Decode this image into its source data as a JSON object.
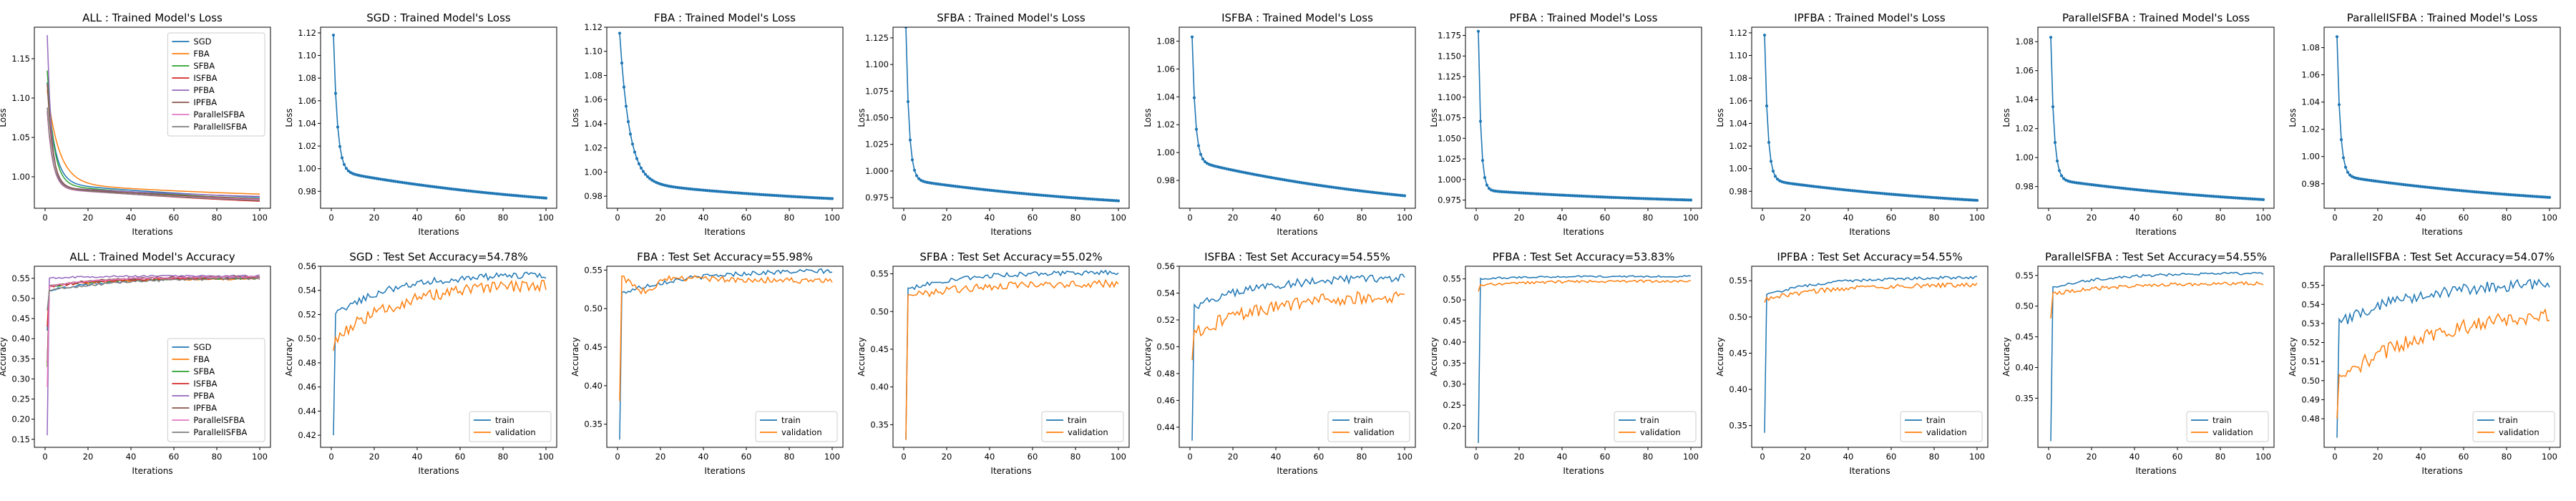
{
  "colors": {
    "sgd": "#1f77b4",
    "fba": "#ff7f0e",
    "sfba": "#2ca02c",
    "isfba": "#d62728",
    "pfba": "#9467bd",
    "ipfba": "#8c564b",
    "parallelsfba": "#e377c2",
    "parallelisfba": "#7f7f7f",
    "train": "#1f77b4",
    "validation": "#ff7f0e"
  },
  "chart_data": [
    {
      "type": "line",
      "title": "ALL : Trained Model's Loss",
      "xlabel": "Iterations",
      "ylabel": "Loss",
      "xlim": [
        -5,
        105
      ],
      "ylim": [
        0.96,
        1.19
      ],
      "xticks": [
        0,
        20,
        40,
        60,
        80,
        100
      ],
      "yticks": [
        1.0,
        1.05,
        1.1,
        1.15
      ],
      "ytick_labels": [
        "1.00",
        "1.05",
        "1.10",
        "1.15"
      ],
      "legend": "top-right",
      "series": [
        {
          "name": "SGD",
          "color_key": "sgd",
          "y0": 1.12,
          "yend": 0.974,
          "tau": 3.5,
          "shape": 0.018
        },
        {
          "name": "FBA",
          "color_key": "fba",
          "y0": 1.11,
          "yend": 0.978,
          "tau": 5.5,
          "shape": 0.014
        },
        {
          "name": "SFBA",
          "color_key": "sfba",
          "y0": 1.135,
          "yend": 0.972,
          "tau": 3,
          "shape": 0.018
        },
        {
          "name": "ISFBA",
          "color_key": "isfba",
          "y0": 1.083,
          "yend": 0.969,
          "tau": 2.5,
          "shape": 0.018
        },
        {
          "name": "PFBA",
          "color_key": "pfba",
          "y0": 1.18,
          "yend": 0.975,
          "tau": 2,
          "shape": 0.012
        },
        {
          "name": "IPFBA",
          "color_key": "ipfba",
          "y0": 1.118,
          "yend": 0.972,
          "tau": 2.5,
          "shape": 0.015
        },
        {
          "name": "ParallelSFBA",
          "color_key": "parallelsfba",
          "y0": 1.083,
          "yend": 0.971,
          "tau": 2.5,
          "shape": 0.014
        },
        {
          "name": "ParallelISFBA",
          "color_key": "parallelisfba",
          "y0": 1.088,
          "yend": 0.97,
          "tau": 2.5,
          "shape": 0.016
        }
      ]
    },
    {
      "type": "line",
      "title": "SGD : Trained Model's Loss",
      "xlabel": "Iterations",
      "ylabel": "Loss",
      "xlim": [
        -5,
        105
      ],
      "ylim": [
        0.965,
        1.125
      ],
      "xticks": [
        0,
        20,
        40,
        60,
        80,
        100
      ],
      "yticks": [
        0.98,
        1.0,
        1.02,
        1.04,
        1.06,
        1.08,
        1.1,
        1.12
      ],
      "ytick_labels": [
        "0.98",
        "1.00",
        "1.02",
        "1.04",
        "1.06",
        "1.08",
        "1.10",
        "1.12"
      ],
      "markers": true,
      "series": [
        {
          "color_key": "sgd",
          "y0": 1.118,
          "yend": 0.974,
          "tau": 1.8,
          "shape": 0.024
        }
      ]
    },
    {
      "type": "line",
      "title": "FBA : Trained Model's Loss",
      "xlabel": "Iterations",
      "ylabel": "Loss",
      "xlim": [
        -5,
        105
      ],
      "ylim": [
        0.97,
        1.12
      ],
      "xticks": [
        0,
        20,
        40,
        60,
        80,
        100
      ],
      "yticks": [
        0.98,
        1.0,
        1.02,
        1.04,
        1.06,
        1.08,
        1.1,
        1.12
      ],
      "ytick_labels": [
        "0.98",
        "1.00",
        "1.02",
        "1.04",
        "1.06",
        "1.08",
        "1.10",
        "1.12"
      ],
      "markers": true,
      "series": [
        {
          "color_key": "sgd",
          "y0": 1.115,
          "yend": 0.978,
          "tau": 4.5,
          "shape": 0.014
        }
      ]
    },
    {
      "type": "line",
      "title": "SFBA : Trained Model's Loss",
      "xlabel": "Iterations",
      "ylabel": "Loss",
      "xlim": [
        -5,
        105
      ],
      "ylim": [
        0.965,
        1.135
      ],
      "xticks": [
        0,
        20,
        40,
        60,
        80,
        100
      ],
      "yticks": [
        0.975,
        1.0,
        1.025,
        1.05,
        1.075,
        1.1,
        1.125
      ],
      "ytick_labels": [
        "0.975",
        "1.000",
        "1.025",
        "1.050",
        "1.075",
        "1.100",
        "1.125"
      ],
      "markers": true,
      "series": [
        {
          "color_key": "sgd",
          "y0": 1.135,
          "yend": 0.972,
          "tau": 1.5,
          "shape": 0.02
        }
      ]
    },
    {
      "type": "line",
      "title": "ISFBA : Trained Model's Loss",
      "xlabel": "Iterations",
      "ylabel": "Loss",
      "xlim": [
        -5,
        105
      ],
      "ylim": [
        0.96,
        1.09
      ],
      "xticks": [
        0,
        20,
        40,
        60,
        80,
        100
      ],
      "yticks": [
        0.98,
        1.0,
        1.02,
        1.04,
        1.06,
        1.08
      ],
      "ytick_labels": [
        "0.98",
        "1.00",
        "1.02",
        "1.04",
        "1.06",
        "1.08"
      ],
      "markers": true,
      "series": [
        {
          "color_key": "sgd",
          "y0": 1.083,
          "yend": 0.969,
          "tau": 1.5,
          "shape": 0.025
        }
      ]
    },
    {
      "type": "line",
      "title": "PFBA : Trained Model's Loss",
      "xlabel": "Iterations",
      "ylabel": "Loss",
      "xlim": [
        -5,
        105
      ],
      "ylim": [
        0.965,
        1.185
      ],
      "xticks": [
        0,
        20,
        40,
        60,
        80,
        100
      ],
      "yticks": [
        0.975,
        1.0,
        1.025,
        1.05,
        1.075,
        1.1,
        1.125,
        1.15,
        1.175
      ],
      "ytick_labels": [
        "0.975",
        "1.000",
        "1.025",
        "1.050",
        "1.075",
        "1.100",
        "1.125",
        "1.150",
        "1.175"
      ],
      "markers": true,
      "series": [
        {
          "color_key": "sgd",
          "y0": 1.18,
          "yend": 0.975,
          "tau": 1.2,
          "shape": 0.012
        }
      ]
    },
    {
      "type": "line",
      "title": "IPFBA : Trained Model's Loss",
      "xlabel": "Iterations",
      "ylabel": "Loss",
      "xlim": [
        -5,
        105
      ],
      "ylim": [
        0.965,
        1.125
      ],
      "xticks": [
        0,
        20,
        40,
        60,
        80,
        100
      ],
      "yticks": [
        0.98,
        1.0,
        1.02,
        1.04,
        1.06,
        1.08,
        1.1,
        1.12
      ],
      "ytick_labels": [
        "0.98",
        "1.00",
        "1.02",
        "1.04",
        "1.06",
        "1.08",
        "1.10",
        "1.12"
      ],
      "markers": true,
      "series": [
        {
          "color_key": "sgd",
          "y0": 1.118,
          "yend": 0.972,
          "tau": 1.5,
          "shape": 0.018
        }
      ]
    },
    {
      "type": "line",
      "title": "ParallelSFBA : Trained Model's Loss",
      "xlabel": "Iterations",
      "ylabel": "Loss",
      "xlim": [
        -5,
        105
      ],
      "ylim": [
        0.965,
        1.09
      ],
      "xticks": [
        0,
        20,
        40,
        60,
        80,
        100
      ],
      "yticks": [
        0.98,
        1.0,
        1.02,
        1.04,
        1.06,
        1.08
      ],
      "ytick_labels": [
        "0.98",
        "1.00",
        "1.02",
        "1.04",
        "1.06",
        "1.08"
      ],
      "markers": true,
      "series": [
        {
          "color_key": "sgd",
          "y0": 1.083,
          "yend": 0.971,
          "tau": 1.5,
          "shape": 0.014
        }
      ]
    },
    {
      "type": "line",
      "title": "ParallelISFBA : Trained Model's Loss",
      "xlabel": "Iterations",
      "ylabel": "Loss",
      "xlim": [
        -5,
        105
      ],
      "ylim": [
        0.962,
        1.095
      ],
      "xticks": [
        0,
        20,
        40,
        60,
        80,
        100
      ],
      "yticks": [
        0.98,
        1.0,
        1.02,
        1.04,
        1.06,
        1.08
      ],
      "ytick_labels": [
        "0.98",
        "1.00",
        "1.02",
        "1.04",
        "1.06",
        "1.08"
      ],
      "markers": true,
      "series": [
        {
          "color_key": "sgd",
          "y0": 1.088,
          "yend": 0.97,
          "tau": 1.5,
          "shape": 0.016
        }
      ]
    },
    {
      "type": "line",
      "title": "ALL : Trained Model's Accuracy",
      "xlabel": "Iterations",
      "ylabel": "Accuracy",
      "xlim": [
        -5,
        105
      ],
      "ylim": [
        0.13,
        0.58
      ],
      "xticks": [
        0,
        20,
        40,
        60,
        80,
        100
      ],
      "yticks": [
        0.15,
        0.2,
        0.25,
        0.3,
        0.35,
        0.4,
        0.45,
        0.5,
        0.55
      ],
      "ytick_labels": [
        "0.15",
        "0.20",
        "0.25",
        "0.30",
        "0.35",
        "0.40",
        "0.45",
        "0.50",
        "0.55"
      ],
      "legend": "lower-right",
      "series": [
        {
          "name": "SGD",
          "color_key": "sgd",
          "y0": 0.42,
          "y1": 0.52,
          "yend": 0.553,
          "tau": 30,
          "noise": 0.003
        },
        {
          "name": "FBA",
          "color_key": "fba",
          "y0": 0.33,
          "y1": 0.53,
          "yend": 0.55,
          "tau": 30,
          "noise": 0.003
        },
        {
          "name": "SFBA",
          "color_key": "sfba",
          "y0": 0.33,
          "y1": 0.53,
          "yend": 0.552,
          "tau": 30,
          "noise": 0.003
        },
        {
          "name": "ISFBA",
          "color_key": "isfba",
          "y0": 0.43,
          "y1": 0.53,
          "yend": 0.552,
          "tau": 30,
          "noise": 0.003
        },
        {
          "name": "PFBA",
          "color_key": "pfba",
          "y0": 0.16,
          "y1": 0.55,
          "yend": 0.556,
          "tau": 20,
          "noise": 0.002
        },
        {
          "name": "IPFBA",
          "color_key": "ipfba",
          "y0": 0.34,
          "y1": 0.53,
          "yend": 0.555,
          "tau": 25,
          "noise": 0.002
        },
        {
          "name": "ParallelSFBA",
          "color_key": "parallelsfba",
          "y0": 0.28,
          "y1": 0.53,
          "yend": 0.554,
          "tau": 25,
          "noise": 0.002
        },
        {
          "name": "ParallelISFBA",
          "color_key": "parallelisfba",
          "y0": 0.47,
          "y1": 0.52,
          "yend": 0.552,
          "tau": 35,
          "noise": 0.003
        }
      ]
    },
    {
      "type": "line",
      "title": "SGD : Test Set Accuracy=54.78%",
      "xlabel": "Iterations",
      "ylabel": "Accuracy",
      "xlim": [
        -5,
        105
      ],
      "ylim": [
        0.41,
        0.56
      ],
      "xticks": [
        0,
        20,
        40,
        60,
        80,
        100
      ],
      "yticks": [
        0.42,
        0.44,
        0.46,
        0.48,
        0.5,
        0.52,
        0.54,
        0.56
      ],
      "ytick_labels": [
        "0.42",
        "0.44",
        "0.46",
        "0.48",
        "0.50",
        "0.52",
        "0.54",
        "0.56"
      ],
      "legend": "lower-right",
      "series": [
        {
          "name": "train",
          "color_key": "train",
          "y0": 0.42,
          "y1": 0.52,
          "yend": 0.553,
          "tau": 25,
          "noise": 0.003
        },
        {
          "name": "validation",
          "color_key": "validation",
          "y0": 0.49,
          "y1": 0.5,
          "yend": 0.546,
          "tau": 30,
          "noise": 0.005
        }
      ]
    },
    {
      "type": "line",
      "title": "FBA : Test Set Accuracy=55.98%",
      "xlabel": "Iterations",
      "ylabel": "Accuracy",
      "xlim": [
        -5,
        105
      ],
      "ylim": [
        0.32,
        0.555
      ],
      "xticks": [
        0,
        20,
        40,
        60,
        80,
        100
      ],
      "yticks": [
        0.35,
        0.4,
        0.45,
        0.5,
        0.55
      ],
      "ytick_labels": [
        "0.35",
        "0.40",
        "0.45",
        "0.50",
        "0.55"
      ],
      "legend": "lower-right",
      "series": [
        {
          "name": "train",
          "color_key": "train",
          "y0": 0.33,
          "y1": 0.52,
          "yend": 0.55,
          "tau": 30,
          "noise": 0.003
        },
        {
          "name": "validation",
          "color_key": "validation",
          "y0": 0.38,
          "y1": 0.545,
          "yend": 0.535,
          "tau": 40,
          "noise": 0.004,
          "dip": 0.02
        }
      ]
    },
    {
      "type": "line",
      "title": "SFBA : Test Set Accuracy=55.02%",
      "xlabel": "Iterations",
      "ylabel": "Accuracy",
      "xlim": [
        -5,
        105
      ],
      "ylim": [
        0.32,
        0.56
      ],
      "xticks": [
        0,
        20,
        40,
        60,
        80,
        100
      ],
      "yticks": [
        0.35,
        0.4,
        0.45,
        0.5,
        0.55
      ],
      "ytick_labels": [
        "0.35",
        "0.40",
        "0.45",
        "0.50",
        "0.55"
      ],
      "legend": "lower-right",
      "series": [
        {
          "name": "train",
          "color_key": "train",
          "y0": 0.33,
          "y1": 0.53,
          "yend": 0.552,
          "tau": 25,
          "noise": 0.003
        },
        {
          "name": "validation",
          "color_key": "validation",
          "y0": 0.33,
          "y1": 0.52,
          "yend": 0.538,
          "tau": 30,
          "noise": 0.005
        }
      ]
    },
    {
      "type": "line",
      "title": "ISFBA : Test Set Accuracy=54.55%",
      "xlabel": "Iterations",
      "ylabel": "Accuracy",
      "xlim": [
        -5,
        105
      ],
      "ylim": [
        0.425,
        0.56
      ],
      "xticks": [
        0,
        20,
        40,
        60,
        80,
        100
      ],
      "yticks": [
        0.44,
        0.46,
        0.48,
        0.5,
        0.52,
        0.54,
        0.56
      ],
      "ytick_labels": [
        "0.44",
        "0.46",
        "0.48",
        "0.50",
        "0.52",
        "0.54",
        "0.56"
      ],
      "legend": "lower-right",
      "series": [
        {
          "name": "train",
          "color_key": "train",
          "y0": 0.43,
          "y1": 0.53,
          "yend": 0.552,
          "tau": 30,
          "noise": 0.003
        },
        {
          "name": "validation",
          "color_key": "validation",
          "y0": 0.49,
          "y1": 0.51,
          "yend": 0.54,
          "tau": 35,
          "noise": 0.005
        }
      ]
    },
    {
      "type": "line",
      "title": "PFBA : Test Set Accuracy=53.83%",
      "xlabel": "Iterations",
      "ylabel": "Accuracy",
      "xlim": [
        -5,
        105
      ],
      "ylim": [
        0.15,
        0.58
      ],
      "xticks": [
        0,
        20,
        40,
        60,
        80,
        100
      ],
      "yticks": [
        0.2,
        0.25,
        0.3,
        0.35,
        0.4,
        0.45,
        0.5,
        0.55
      ],
      "ytick_labels": [
        "0.20",
        "0.25",
        "0.30",
        "0.35",
        "0.40",
        "0.45",
        "0.50",
        "0.55"
      ],
      "legend": "lower-right",
      "series": [
        {
          "name": "train",
          "color_key": "train",
          "y0": 0.16,
          "y1": 0.55,
          "yend": 0.556,
          "tau": 20,
          "noise": 0.002
        },
        {
          "name": "validation",
          "color_key": "validation",
          "y0": 0.52,
          "y1": 0.535,
          "yend": 0.545,
          "tau": 25,
          "noise": 0.003
        }
      ]
    },
    {
      "type": "line",
      "title": "IPFBA : Test Set Accuracy=54.55%",
      "xlabel": "Iterations",
      "ylabel": "Accuracy",
      "xlim": [
        -5,
        105
      ],
      "ylim": [
        0.32,
        0.57
      ],
      "xticks": [
        0,
        20,
        40,
        60,
        80,
        100
      ],
      "yticks": [
        0.35,
        0.4,
        0.45,
        0.5,
        0.55
      ],
      "ytick_labels": [
        "0.35",
        "0.40",
        "0.45",
        "0.50",
        "0.55"
      ],
      "legend": "lower-right",
      "series": [
        {
          "name": "train",
          "color_key": "train",
          "y0": 0.34,
          "y1": 0.53,
          "yend": 0.555,
          "tau": 25,
          "noise": 0.002
        },
        {
          "name": "validation",
          "color_key": "validation",
          "y0": 0.52,
          "y1": 0.525,
          "yend": 0.545,
          "tau": 30,
          "noise": 0.003
        }
      ]
    },
    {
      "type": "line",
      "title": "ParallelSFBA : Test Set Accuracy=54.55%",
      "xlabel": "Iterations",
      "ylabel": "Accuracy",
      "xlim": [
        -5,
        105
      ],
      "ylim": [
        0.27,
        0.565
      ],
      "xticks": [
        0,
        20,
        40,
        60,
        80,
        100
      ],
      "yticks": [
        0.35,
        0.4,
        0.45,
        0.5,
        0.55
      ],
      "ytick_labels": [
        "0.35",
        "0.40",
        "0.45",
        "0.50",
        "0.55"
      ],
      "legend": "lower-right",
      "series": [
        {
          "name": "train",
          "color_key": "train",
          "y0": 0.28,
          "y1": 0.53,
          "yend": 0.554,
          "tau": 25,
          "noise": 0.002
        },
        {
          "name": "validation",
          "color_key": "validation",
          "y0": 0.48,
          "y1": 0.52,
          "yend": 0.538,
          "tau": 30,
          "noise": 0.003
        }
      ]
    },
    {
      "type": "line",
      "title": "ParallelISFBA : Test Set Accuracy=54.07%",
      "xlabel": "Iterations",
      "ylabel": "Accuracy",
      "xlim": [
        -5,
        105
      ],
      "ylim": [
        0.465,
        0.56
      ],
      "xticks": [
        0,
        20,
        40,
        60,
        80,
        100
      ],
      "yticks": [
        0.48,
        0.49,
        0.5,
        0.51,
        0.52,
        0.53,
        0.54,
        0.55
      ],
      "ytick_labels": [
        "0.48",
        "0.49",
        "0.50",
        "0.51",
        "0.52",
        "0.53",
        "0.54",
        "0.55"
      ],
      "legend": "lower-right",
      "series": [
        {
          "name": "train",
          "color_key": "train",
          "y0": 0.47,
          "y1": 0.53,
          "yend": 0.552,
          "tau": 35,
          "noise": 0.003
        },
        {
          "name": "validation",
          "color_key": "validation",
          "y0": 0.48,
          "y1": 0.5,
          "yend": 0.537,
          "tau": 40,
          "noise": 0.004
        }
      ]
    }
  ]
}
